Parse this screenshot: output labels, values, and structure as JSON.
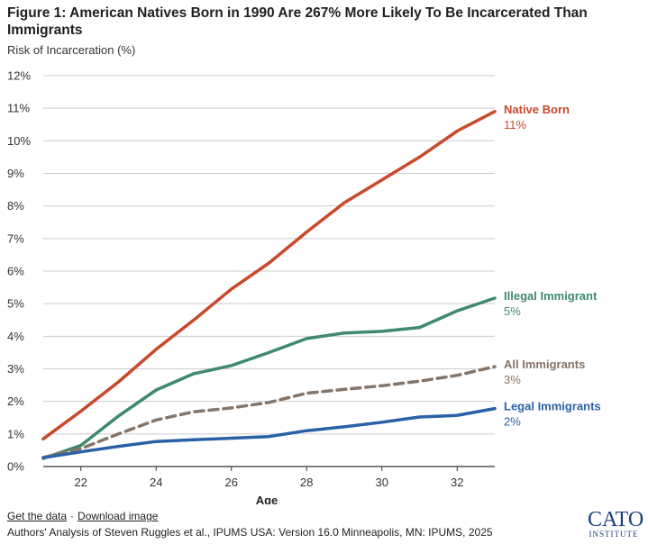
{
  "header": {
    "title": "Figure 1: American Natives Born in 1990 Are 267% More Likely To Be Incarcerated Than Immigrants",
    "subtitle": "Risk of Incarceration (%)"
  },
  "footer": {
    "get_data_label": "Get the data",
    "separator": "·",
    "download_label": "Download image",
    "source": "Authors' Analysis of Steven Ruggles et al., IPUMS USA: Version 16.0 Minneapolis, MN: IPUMS, 2025"
  },
  "logo": {
    "main": "CATO",
    "sub": "INSTITUTE"
  },
  "colors": {
    "native": "#c8492c",
    "illegal": "#3f8a6c",
    "all": "#857468",
    "legal": "#2a61a5",
    "grid": "#cccccc",
    "axis": "#333333"
  },
  "chart_data": {
    "type": "line",
    "xlabel": "Age",
    "ylabel": "",
    "xlim": [
      21,
      33
    ],
    "ylim": [
      0,
      12
    ],
    "x_ticks": [
      22,
      24,
      26,
      28,
      30,
      32
    ],
    "x_tick_labels": [
      "22",
      "24",
      "26",
      "28",
      "30",
      "32"
    ],
    "y_ticks": [
      0,
      1,
      2,
      3,
      4,
      5,
      6,
      7,
      8,
      9,
      10,
      11,
      12
    ],
    "y_tick_labels": [
      "0%",
      "1%",
      "2%",
      "3%",
      "4%",
      "5%",
      "6%",
      "7%",
      "8%",
      "9%",
      "10%",
      "11%",
      "12%"
    ],
    "grid": "horizontal",
    "x": [
      21,
      22,
      23,
      24,
      25,
      26,
      27,
      28,
      29,
      30,
      31,
      32,
      33
    ],
    "series": [
      {
        "name": "Native Born",
        "end_label": "11%",
        "style": "solid",
        "values": [
          0.85,
          1.7,
          2.6,
          3.6,
          4.5,
          5.45,
          6.25,
          7.2,
          8.1,
          8.8,
          9.5,
          10.3,
          10.9
        ]
      },
      {
        "name": "Illegal Immigrant",
        "end_label": "5%",
        "style": "solid",
        "values": [
          0.25,
          0.65,
          1.55,
          2.35,
          2.85,
          3.1,
          3.5,
          3.93,
          4.1,
          4.15,
          4.27,
          4.78,
          5.17
        ]
      },
      {
        "name": "All Immigrants",
        "end_label": "3%",
        "style": "dashed",
        "values": [
          0.28,
          0.55,
          1.0,
          1.43,
          1.68,
          1.8,
          1.97,
          2.25,
          2.37,
          2.48,
          2.62,
          2.8,
          3.07
        ]
      },
      {
        "name": "Legal Immigrants",
        "end_label": "2%",
        "style": "solid",
        "values": [
          0.27,
          0.45,
          0.62,
          0.77,
          0.82,
          0.87,
          0.92,
          1.1,
          1.22,
          1.36,
          1.52,
          1.57,
          1.78
        ]
      }
    ]
  }
}
